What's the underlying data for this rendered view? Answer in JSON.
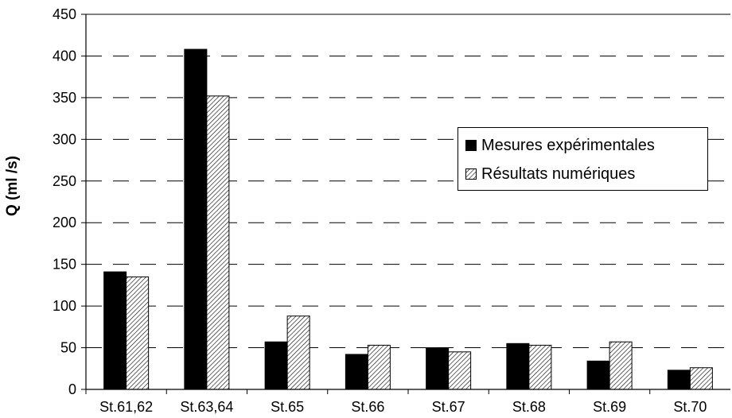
{
  "chart_data": {
    "type": "bar",
    "title": "",
    "xlabel": "",
    "ylabel": "Q (ml /s)",
    "ylim": [
      0,
      450
    ],
    "yticks": [
      0,
      50,
      100,
      150,
      200,
      250,
      300,
      350,
      400,
      450
    ],
    "grid": true,
    "legend_position": "upper-right",
    "categories": [
      "St.61,62",
      "St.63,64",
      "St.65",
      "St.66",
      "St.67",
      "St.68",
      "St.69",
      "St.70"
    ],
    "series": [
      {
        "name": "Mesures expérimentales",
        "values": [
          141,
          408,
          57,
          42,
          50,
          55,
          34,
          23
        ],
        "color": "#000000",
        "pattern": "solid"
      },
      {
        "name": "Résultats numériques",
        "values": [
          135,
          352,
          88,
          53,
          45,
          53,
          57,
          26
        ],
        "color": "#ffffff",
        "pattern": "diagonal-hatch"
      }
    ]
  }
}
